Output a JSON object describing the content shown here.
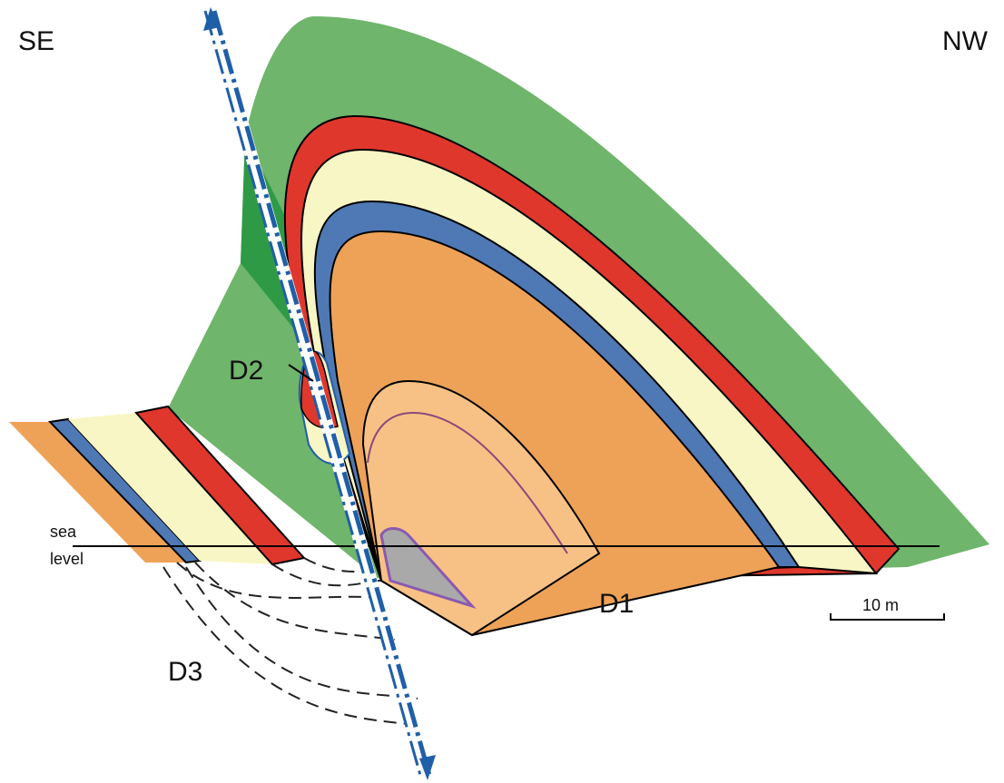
{
  "labels": {
    "se": "SE",
    "nw": "NW",
    "d1": "D1",
    "d2": "D2",
    "d3": "D3",
    "sea": "sea",
    "level": "level",
    "scale": "10 m"
  }
}
